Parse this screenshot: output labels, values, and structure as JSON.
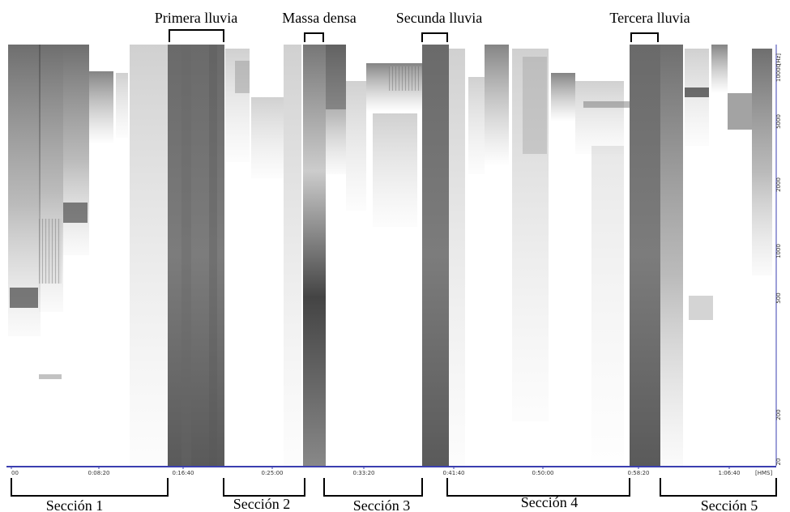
{
  "top_labels": [
    "Primera lluvia",
    "Massa densa",
    "Secunda lluvia",
    "Tercera lluvia"
  ],
  "bottom_labels": [
    "Sección 1",
    "Sección 2",
    "Sección 3",
    "Sección 4",
    "Sección 5"
  ],
  "time_axis": {
    "ticks": [
      "00",
      "0:08:20",
      "0:16:40",
      "0:25:00",
      "0:33:20",
      "0:41:40",
      "0:50:00",
      "0:58:20",
      "1:06:40"
    ],
    "unit": "[HMS]",
    "color": "#3b3fb0"
  },
  "freq_axis": {
    "ticks": [
      "10000",
      "5000",
      "2000",
      "1000",
      "500",
      "200",
      "20"
    ],
    "unit": "[Hz]"
  }
}
